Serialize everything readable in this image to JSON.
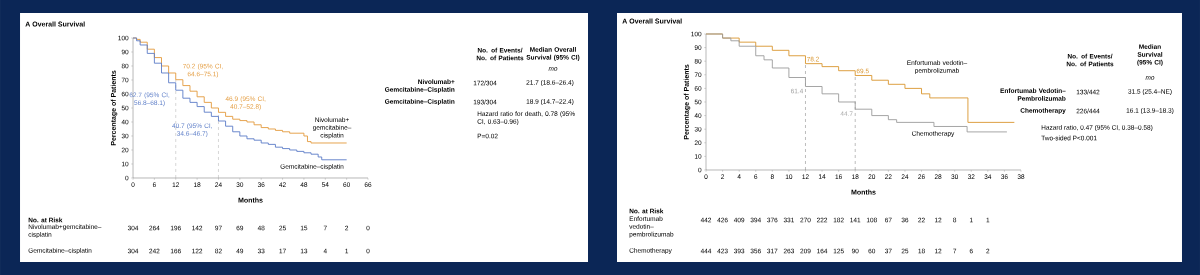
{
  "chart_data": [
    {
      "type": "step",
      "title": "A Overall Survival",
      "xlabel": "Months",
      "ylabel": "Percentage of Patients",
      "xlim": [
        0,
        66
      ],
      "xticks": [
        0,
        6,
        12,
        18,
        24,
        30,
        36,
        42,
        48,
        54,
        60,
        66
      ],
      "ylim": [
        0,
        100
      ],
      "yticks": [
        0,
        10,
        20,
        30,
        40,
        50,
        60,
        70,
        80,
        90,
        100
      ],
      "series": [
        {
          "name": "Nivolumab+gemcitabine–cisplatin",
          "color": "#e39a3c",
          "x": [
            0,
            1,
            2,
            4,
            6,
            8,
            10,
            12,
            14,
            16,
            18,
            20,
            22,
            24,
            26,
            28,
            30,
            32,
            34,
            36,
            38,
            40,
            42,
            44,
            46,
            48,
            49,
            50,
            60
          ],
          "values": [
            100,
            99,
            97,
            92,
            86,
            80,
            75,
            70.2,
            66,
            62,
            58,
            54,
            50,
            46.9,
            44,
            42,
            41,
            40,
            38,
            36,
            35,
            34,
            33,
            32,
            32,
            30,
            26,
            25,
            25
          ]
        },
        {
          "name": "Gemcitabine–cisplatin",
          "color": "#5b7cc7",
          "x": [
            0,
            1,
            2,
            4,
            6,
            8,
            10,
            12,
            14,
            16,
            18,
            20,
            22,
            24,
            26,
            28,
            30,
            32,
            34,
            36,
            38,
            40,
            42,
            44,
            46,
            48,
            50,
            52,
            53,
            60
          ],
          "values": [
            100,
            98,
            95,
            89,
            82,
            75,
            68,
            62.7,
            57,
            54,
            51,
            47,
            44,
            40.7,
            37,
            33,
            30,
            28,
            27,
            25,
            24,
            22,
            21,
            20,
            19,
            18,
            17,
            15,
            13,
            13
          ]
        }
      ],
      "ref_lines": [
        {
          "axis": "x",
          "value": 12,
          "color": "#999999",
          "line_style": "dashed"
        },
        {
          "axis": "x",
          "value": 24,
          "color": "#999999",
          "line_style": "dashed"
        }
      ],
      "annotations": [
        {
          "text": "70.2 (95% CI, 64.6–75.1)",
          "x": 12,
          "y": 70.2
        },
        {
          "text": "62.7 (95% CI, 56.8–68.1)",
          "x": 12,
          "y": 62.7
        },
        {
          "text": "46.9 (95% CI, 40.7–52.8)",
          "x": 24,
          "y": 46.9
        },
        {
          "text": "40.7 (95% CI, 34.6–46.7)",
          "x": 24,
          "y": 40.7
        },
        "No. of Events/ No. of Patients",
        "Median Overall Survival (95% CI)",
        "mo",
        "Nivolumab+Gemcitabine–Cisplatin",
        "172/304",
        "21.7 (18.6–26.4)",
        "Gemcitabine–Cisplatin",
        "193/304",
        "18.9 (14.7–22.4)",
        "Hazard ratio for death, 0.78 (95% CI, 0.63–0.96)",
        "P=0.02",
        "No. at Risk",
        "Nivolumab+gemcitabine–cisplatin",
        "304",
        "264",
        "196",
        "142",
        "97",
        "69",
        "48",
        "25",
        "15",
        "7",
        "2",
        "0",
        "Gemcitabine–cisplatin",
        "304",
        "242",
        "166",
        "122",
        "82",
        "49",
        "33",
        "17",
        "13",
        "4",
        "1",
        "0"
      ]
    },
    {
      "type": "step",
      "title": "A Overall Survival",
      "xlabel": "Months",
      "ylabel": "Percentage of Patients",
      "xlim": [
        0,
        38
      ],
      "xticks": [
        0,
        2,
        4,
        6,
        8,
        10,
        12,
        14,
        16,
        18,
        20,
        22,
        24,
        26,
        28,
        30,
        32,
        34,
        36,
        38
      ],
      "ylim": [
        0,
        100
      ],
      "yticks": [
        0,
        10,
        20,
        30,
        40,
        50,
        60,
        70,
        80,
        90,
        100
      ],
      "series": [
        {
          "name": "Enfortumab vedotin–pembrolizumab",
          "color": "#d9952e",
          "x": [
            0,
            2,
            4,
            6,
            8,
            10,
            12,
            14,
            16,
            18,
            20,
            22,
            24,
            25,
            26,
            27,
            31.6,
            37.2
          ],
          "values": [
            100,
            97,
            94,
            91,
            88,
            84,
            78.2,
            76,
            73,
            69.5,
            66,
            63,
            60,
            60,
            56,
            53,
            35,
            35
          ]
        },
        {
          "name": "Chemotherapy",
          "color": "#9b9b9b",
          "x": [
            0,
            2,
            3,
            4,
            6,
            7,
            8,
            10,
            12,
            14,
            16,
            18,
            20,
            22,
            23,
            27.5,
            31.5,
            36.3
          ],
          "values": [
            100,
            97,
            95,
            91,
            84,
            81,
            75,
            68,
            61.4,
            56,
            50,
            44.7,
            40,
            37,
            35,
            32,
            28,
            28
          ]
        }
      ],
      "ref_lines": [
        {
          "axis": "x",
          "value": 12,
          "color": "#555555",
          "line_style": "dashed"
        },
        {
          "axis": "x",
          "value": 18,
          "color": "#555555",
          "line_style": "dashed"
        }
      ],
      "annotations": [
        {
          "text": "78.2",
          "x": 12,
          "y": 78.2
        },
        {
          "text": "69.5",
          "x": 18,
          "y": 69.5
        },
        {
          "text": "61.4",
          "x": 12,
          "y": 61.4
        },
        {
          "text": "44.7",
          "x": 18,
          "y": 44.7
        },
        "No. of Events/ No. of Patients",
        "Median Survival (95% CI)",
        "mo",
        "Enfortumab Vedotin–Pembrolizumab",
        "133/442",
        "31.5 (25.4–NE)",
        "Chemotherapy",
        "226/444",
        "16.1 (13.9–18.3)",
        "Hazard ratio, 0.47 (95% CI, 0.38–0.58)",
        "Two-sided P<0.001",
        "No. at Risk",
        "Enfortumab vedotin–pembrolizumab",
        "442",
        "426",
        "409",
        "394",
        "376",
        "331",
        "270",
        "222",
        "182",
        "141",
        "108",
        "67",
        "36",
        "22",
        "12",
        "8",
        "1",
        "1",
        "Chemotherapy",
        "444",
        "423",
        "393",
        "356",
        "317",
        "263",
        "209",
        "164",
        "125",
        "90",
        "60",
        "37",
        "25",
        "18",
        "12",
        "7",
        "6",
        "2"
      ]
    }
  ]
}
